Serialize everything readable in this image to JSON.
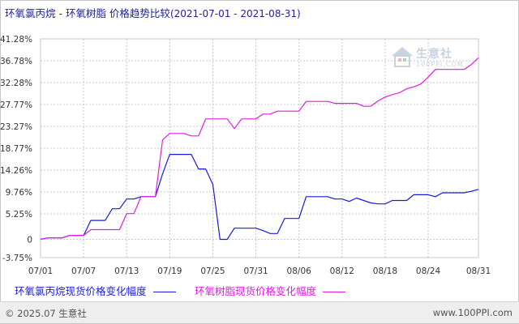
{
  "title": {
    "main": "环氧氯丙烷 - 环氧树脂 价格趋势比较",
    "range": "(2021-07-01 - 2021-08-31)"
  },
  "watermark": {
    "brand": "生意社",
    "url": "100PPI.COM"
  },
  "footer": {
    "copyright": "© 2025.07 生意社",
    "website": "www.100PPI.com"
  },
  "colors": {
    "series1": "#1a1adf",
    "series2": "#e619e6",
    "grid": "#c8c8c8",
    "axis_text": "#333333"
  },
  "chart_data": {
    "type": "line",
    "title": "环氧氯丙烷 - 环氧树脂 价格趋势比较",
    "x_start": "2021-07-01",
    "x_end": "2021-08-31",
    "x_tick_labels": [
      "07/01",
      "07/07",
      "07/13",
      "07/19",
      "07/25",
      "07/31",
      "08/06",
      "08/12",
      "08/18",
      "08/24",
      "08/31"
    ],
    "x_tick_days": [
      1,
      7,
      13,
      19,
      25,
      31,
      37,
      43,
      49,
      55,
      62
    ],
    "y_tick_labels": [
      "41.28%",
      "36.78%",
      "32.28%",
      "27.77%",
      "23.27%",
      "18.77%",
      "14.26%",
      "9.76%",
      "5.25%",
      "0",
      "-3.75%"
    ],
    "y_ticks": [
      41.28,
      36.78,
      32.28,
      27.77,
      23.27,
      18.77,
      14.26,
      9.76,
      5.25,
      0,
      -3.75
    ],
    "ylim": [
      -3.75,
      41.28
    ],
    "grid": true,
    "legend_position": "bottom",
    "series": [
      {
        "name": "环氧氯丙烷现货价格变化幅度",
        "x": [
          1,
          2,
          4,
          5,
          6,
          7,
          8,
          9,
          10,
          11,
          12,
          13,
          14,
          15,
          16,
          17,
          18,
          19,
          20,
          21,
          22,
          23,
          24,
          25,
          26,
          27,
          28,
          29,
          30,
          31,
          32,
          33,
          34,
          35,
          36,
          37,
          38,
          39,
          40,
          41,
          42,
          43,
          44,
          45,
          46,
          47,
          48,
          49,
          50,
          51,
          52,
          53,
          54,
          55,
          56,
          57,
          58,
          59,
          60,
          61,
          62
        ],
        "y": [
          0,
          0.3,
          0.3,
          0.8,
          0.8,
          0.8,
          3.9,
          3.9,
          3.9,
          6.3,
          6.3,
          8.3,
          8.3,
          8.8,
          8.8,
          8.8,
          13.5,
          17.5,
          17.5,
          17.5,
          17.5,
          14.5,
          14.5,
          11.3,
          0,
          0,
          2.3,
          2.3,
          2.3,
          2.3,
          1.8,
          1.2,
          1.2,
          4.3,
          4.3,
          4.3,
          8.8,
          8.8,
          8.8,
          8.8,
          8.3,
          8.3,
          7.8,
          8.5,
          8.0,
          7.5,
          7.3,
          7.3,
          8.0,
          8.0,
          8.0,
          9.2,
          9.2,
          9.2,
          8.8,
          9.6,
          9.6,
          9.6,
          9.6,
          9.9,
          10.3
        ]
      },
      {
        "name": "环氧树脂现货价格变化幅度",
        "x": [
          1,
          2,
          4,
          5,
          6,
          7,
          8,
          9,
          10,
          11,
          12,
          13,
          14,
          15,
          16,
          17,
          18,
          19,
          20,
          21,
          22,
          23,
          24,
          25,
          26,
          27,
          28,
          29,
          30,
          31,
          32,
          33,
          34,
          35,
          36,
          37,
          38,
          39,
          40,
          41,
          42,
          43,
          44,
          45,
          46,
          47,
          48,
          49,
          50,
          51,
          52,
          53,
          54,
          55,
          56,
          57,
          58,
          59,
          60,
          61,
          62
        ],
        "y": [
          0,
          0.3,
          0.3,
          0.8,
          0.8,
          0.8,
          2.0,
          2.0,
          2.0,
          2.0,
          2.0,
          5.3,
          5.3,
          8.8,
          8.8,
          8.8,
          20.5,
          21.8,
          21.8,
          21.8,
          21.3,
          21.3,
          24.8,
          24.8,
          24.8,
          24.8,
          22.8,
          24.8,
          24.8,
          24.8,
          25.8,
          25.8,
          26.4,
          26.4,
          26.4,
          26.4,
          28.4,
          28.4,
          28.4,
          28.4,
          28.0,
          28.0,
          28.0,
          28.0,
          27.4,
          27.4,
          28.5,
          29.3,
          29.8,
          30.2,
          31.0,
          31.4,
          32.0,
          33.4,
          35.0,
          35.0,
          35.0,
          35.0,
          35.0,
          36.0,
          37.4
        ]
      }
    ]
  }
}
